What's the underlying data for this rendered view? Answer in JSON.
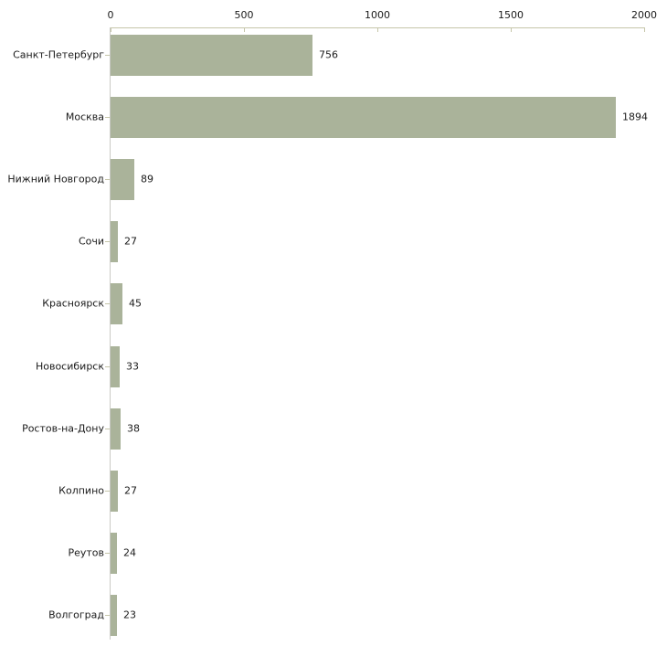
{
  "chart_data": {
    "type": "bar",
    "orientation": "horizontal",
    "title": "",
    "xlabel": "",
    "ylabel": "",
    "categories": [
      "Санкт-Петербург",
      "Москва",
      "Нижний Новгород",
      "Сочи",
      "Красноярск",
      "Новосибирск",
      "Ростов-на-Дону",
      "Колпино",
      "Реутов",
      "Волгоград"
    ],
    "values": [
      756,
      1894,
      89,
      27,
      45,
      33,
      38,
      27,
      24,
      23
    ],
    "value_labels": [
      "756",
      "1894",
      "89",
      "27",
      "45",
      "33",
      "38",
      "27",
      "24",
      "23"
    ],
    "x_ticks": [
      0,
      500,
      1000,
      1500,
      2000
    ],
    "x_tick_labels": [
      "0",
      "500",
      "1000",
      "1500",
      "2000"
    ],
    "xlim": [
      0,
      2000
    ],
    "grid": false,
    "legend": false,
    "colors": {
      "bar_fill": "#aab39a",
      "horizontal_axis": "#c6c6aa",
      "vertical_axis": "#c9c9c4",
      "tick": "#c6c6aa",
      "text": "#1a1a1a",
      "background": "#ffffff"
    }
  }
}
